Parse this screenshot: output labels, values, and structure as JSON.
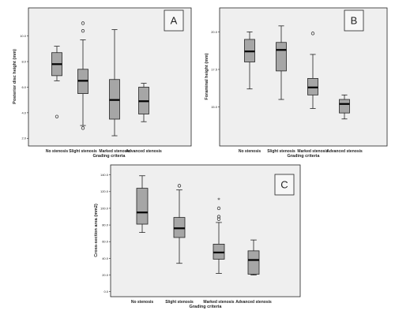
{
  "chart_data": [
    {
      "type": "box",
      "panel_label": "A",
      "ylabel": "Posterior disc height (mm)",
      "xlabel": "Grading criteria",
      "ylim": [
        1.4,
        12.2
      ],
      "yticks": [
        2.0,
        4.0,
        6.0,
        8.0,
        10.0
      ],
      "ytick_labels": [
        "2.0",
        "4.0",
        "6.0",
        "8.0",
        "10.0"
      ],
      "categories": [
        "No stenosis",
        "Slight stenosis",
        "Marked stenosis",
        "Advanced stenosis"
      ],
      "boxes": [
        {
          "min": 6.5,
          "q1": 6.9,
          "median": 7.8,
          "q3": 8.7,
          "max": 9.2,
          "outliers": [
            3.7
          ],
          "extremes": []
        },
        {
          "min": 3.0,
          "q1": 5.5,
          "median": 6.5,
          "q3": 7.4,
          "max": 9.7,
          "outliers": [
            11.0,
            10.4,
            2.8
          ],
          "extremes": []
        },
        {
          "min": 2.2,
          "q1": 3.5,
          "median": 5.0,
          "q3": 6.6,
          "max": 10.5,
          "outliers": [],
          "extremes": []
        },
        {
          "min": 3.3,
          "q1": 3.9,
          "median": 4.9,
          "q3": 6.0,
          "max": 6.3,
          "outliers": [],
          "extremes": []
        }
      ]
    },
    {
      "type": "box",
      "panel_label": "B",
      "ylabel": "Foraminal height (mm)",
      "xlabel": "Grading criteria",
      "ylim": [
        12.4,
        21.6
      ],
      "yticks": [
        15.0,
        17.5,
        20.0
      ],
      "ytick_labels": [
        "15.0",
        "17.5",
        "20.0"
      ],
      "categories": [
        "No stenosis",
        "Slight stenosis",
        "Marked stenosis",
        "Advanced stenosis"
      ],
      "boxes": [
        {
          "min": 16.2,
          "q1": 18.0,
          "median": 18.7,
          "q3": 19.5,
          "max": 20.0,
          "outliers": [],
          "extremes": []
        },
        {
          "min": 15.5,
          "q1": 17.4,
          "median": 18.8,
          "q3": 19.3,
          "max": 20.4,
          "outliers": [],
          "extremes": []
        },
        {
          "min": 14.9,
          "q1": 15.8,
          "median": 16.3,
          "q3": 16.9,
          "max": 18.5,
          "outliers": [
            19.9
          ],
          "extremes": []
        },
        {
          "min": 14.2,
          "q1": 14.6,
          "median": 15.2,
          "q3": 15.5,
          "max": 15.8,
          "outliers": [],
          "extremes": []
        }
      ]
    },
    {
      "type": "box",
      "panel_label": "C",
      "ylabel": "Cross-section area (mm2)",
      "xlabel": "Grading criteria",
      "ylim": [
        -6,
        152
      ],
      "yticks": [
        0,
        20,
        40,
        60,
        80,
        100,
        120,
        140
      ],
      "ytick_labels": [
        "0.0",
        "20.0",
        "40.0",
        "60.0",
        "80.0",
        "100.0",
        "120.0",
        "140.0"
      ],
      "categories": [
        "No stenosis",
        "Slight stenosis",
        "Marked stenosis",
        "Advanced stenosis"
      ],
      "boxes": [
        {
          "min": 71,
          "q1": 81,
          "median": 95,
          "q3": 124,
          "max": 139,
          "outliers": [],
          "extremes": []
        },
        {
          "min": 34,
          "q1": 65,
          "median": 76,
          "q3": 89,
          "max": 122,
          "outliers": [
            127
          ],
          "extremes": []
        },
        {
          "min": 22,
          "q1": 39,
          "median": 47,
          "q3": 57,
          "max": 83,
          "outliers": [
            87,
            90,
            100
          ],
          "extremes": [
            111
          ]
        },
        {
          "min": 20,
          "q1": 21,
          "median": 38,
          "q3": 49,
          "max": 62,
          "outliers": [],
          "extremes": []
        }
      ]
    }
  ]
}
